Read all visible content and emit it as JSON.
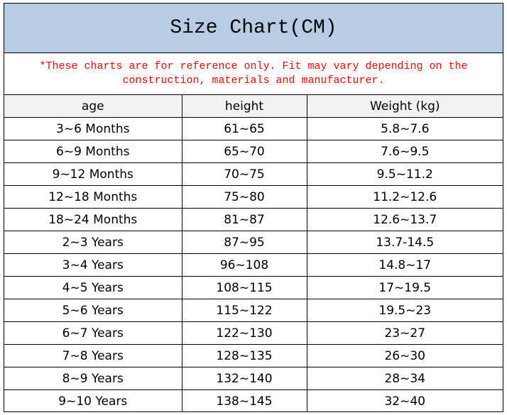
{
  "header": {
    "title": "Size Chart(CM)",
    "note": "*These charts are for reference only. Fit may vary depending on the construction, materials and manufacturer."
  },
  "table": {
    "columns": [
      "age",
      "height",
      "Weight (kg)"
    ],
    "rows": [
      [
        "3~6 Months",
        "61~65",
        "5.8~7.6"
      ],
      [
        "6~9 Months",
        "65~70",
        "7.6~9.5"
      ],
      [
        "9~12 Months",
        "70~75",
        "9.5~11.2"
      ],
      [
        "12~18 Months",
        "75~80",
        "11.2~12.6"
      ],
      [
        "18~24 Months",
        "81~87",
        "12.6~13.7"
      ],
      [
        "2~3 Years",
        "87~95",
        "13.7-14.5"
      ],
      [
        "3~4 Years",
        "96~108",
        "14.8~17"
      ],
      [
        "4~5 Years",
        "108~115",
        "17~19.5"
      ],
      [
        "5~6 Years",
        "115~122",
        "19.5~23"
      ],
      [
        "6~7 Years",
        "122~130",
        "23~27"
      ],
      [
        "7~8 Years",
        "128~135",
        "26~30"
      ],
      [
        "8~9 Years",
        "132~140",
        "28~34"
      ],
      [
        "9~10 Years",
        "138~145",
        "32~40"
      ]
    ]
  }
}
